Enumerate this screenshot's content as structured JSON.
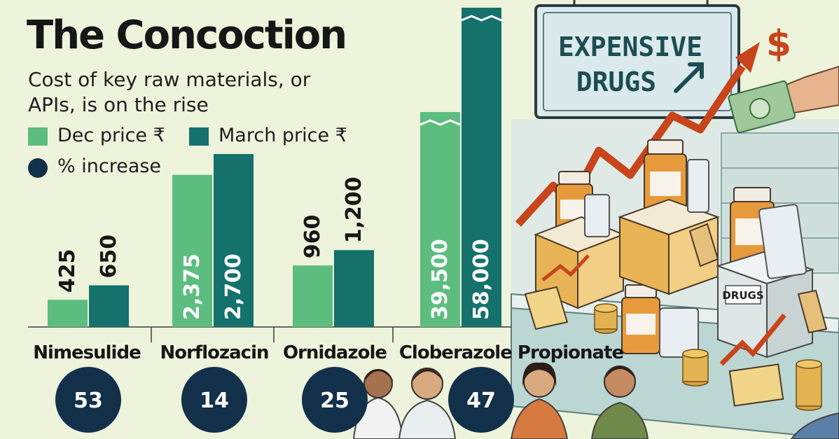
{
  "title": "The Concoction",
  "subtitle": "Cost of key raw materials, or APIs, is on the rise",
  "legend": {
    "dec": "Dec price ₹",
    "march": "March price ₹",
    "increase": "% increase"
  },
  "colors": {
    "dec": "#5cbd7f",
    "march": "#14716b",
    "circle": "#13304a",
    "background": "#eef3dc"
  },
  "illustration": {
    "sign": [
      "EXPENSIVE",
      "DRUGS"
    ],
    "box_label": "DRUGS",
    "price_tag_symbol": "$"
  },
  "chart_data": {
    "type": "bar",
    "title": "The Concoction",
    "subtitle": "Cost of key raw materials, or APIs, is on the rise",
    "categories": [
      "Nimesulide",
      "Norflozacin",
      "Ornidazole",
      "Cloberazole Propionate"
    ],
    "series": [
      {
        "name": "Dec price ₹",
        "values": [
          425,
          2375,
          960,
          39500
        ],
        "labels": [
          "425",
          "2,375",
          "960",
          "39,500"
        ]
      },
      {
        "name": "March price ₹",
        "values": [
          650,
          2700,
          1200,
          58000
        ],
        "labels": [
          "650",
          "2,700",
          "1,200",
          "58,000"
        ]
      }
    ],
    "percent_increase": {
      "name": "% increase",
      "values": [
        53,
        14,
        25,
        47
      ]
    },
    "axis_break": "Cloberazole Propionate bars truncated",
    "grid": false,
    "legend_position": "top-left"
  }
}
